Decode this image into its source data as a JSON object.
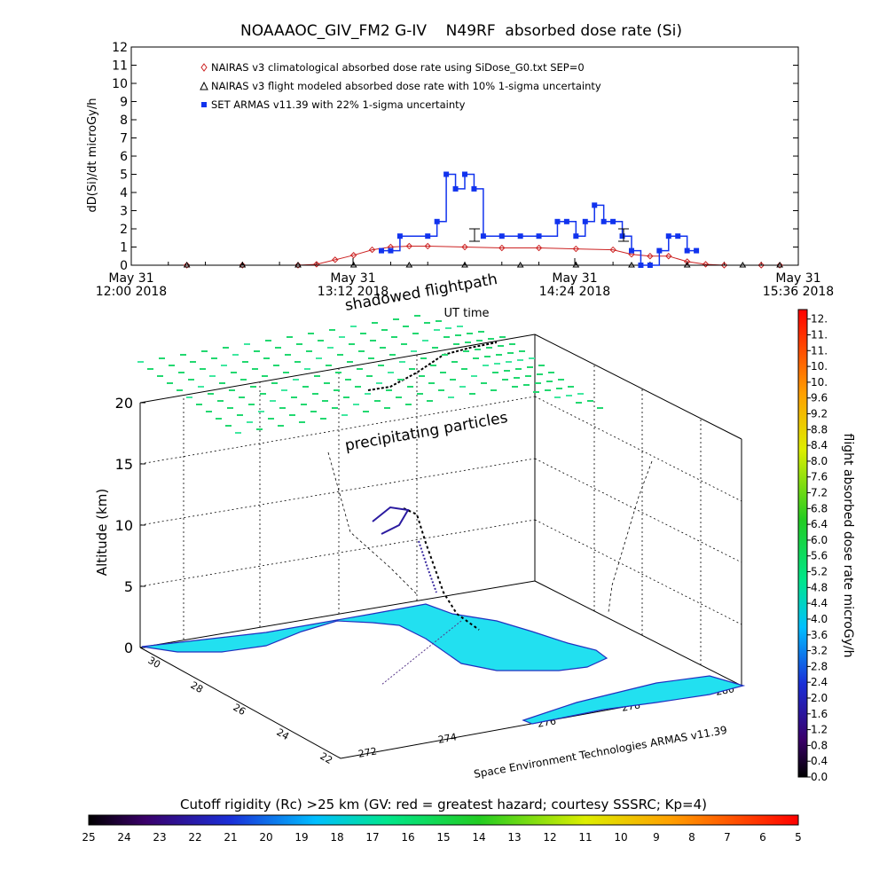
{
  "header": {
    "title": "NOAAAOC_GIV_FM2 G-IV    N49RF  absorbed dose rate (Si)"
  },
  "chart_data": [
    {
      "type": "line",
      "title": "NOAAAOC_GIV_FM2 G-IV    N49RF  absorbed dose rate (Si)",
      "xlabel": "UT time",
      "ylabel": "dD(Si)/dt microGy/h",
      "ylim": [
        0,
        12
      ],
      "y_ticks": [
        "0",
        "1",
        "2",
        "3",
        "4",
        "5",
        "6",
        "7",
        "8",
        "9",
        "10",
        "11",
        "12"
      ],
      "x_ticks": [
        {
          "date": "May 31",
          "time": "12:00 2018"
        },
        {
          "date": "May 31",
          "time": "13:12 2018"
        },
        {
          "date": "May 31",
          "time": "14:24 2018"
        },
        {
          "date": "May 31",
          "time": "15:36 2018"
        }
      ],
      "legend_position": "top-left",
      "grid": false,
      "series": [
        {
          "name": "NAIRAS v3 climatological absorbed dose rate using SiDose_G0.txt SEP=0",
          "color": "#cc2222",
          "marker": "diamond",
          "x": [
            "12:18",
            "12:36",
            "12:54",
            "13:00",
            "13:06",
            "13:12",
            "13:18",
            "13:24",
            "13:30",
            "13:36",
            "13:48",
            "14:00",
            "14:12",
            "14:24",
            "14:36",
            "14:42",
            "14:48",
            "14:54",
            "15:00",
            "15:06",
            "15:12",
            "15:24",
            "15:30"
          ],
          "values": [
            0,
            0,
            0,
            0.05,
            0.3,
            0.55,
            0.85,
            1.0,
            1.05,
            1.05,
            1.0,
            0.95,
            0.95,
            0.9,
            0.85,
            0.6,
            0.5,
            0.5,
            0.2,
            0.05,
            0,
            0,
            0
          ]
        },
        {
          "name": "NAIRAS v3 flight modeled absorbed dose rate with 10% 1-sigma uncertainty",
          "color": "#000000",
          "marker": "triangle",
          "x": [
            "12:18",
            "12:36",
            "12:54",
            "13:12",
            "13:30",
            "13:48",
            "14:06",
            "14:24",
            "14:42",
            "15:00",
            "15:18",
            "15:30"
          ],
          "values": [
            0,
            0,
            0,
            0,
            0,
            0,
            0,
            0,
            0,
            0,
            0,
            0
          ]
        },
        {
          "name": "SET ARMAS v11.39 with 22% 1-sigma uncertainty",
          "color": "#1133ee",
          "marker": "square",
          "x": [
            "13:21",
            "13:24",
            "13:27",
            "13:36",
            "13:39",
            "13:42",
            "13:45",
            "13:48",
            "13:51",
            "13:54",
            "14:00",
            "14:06",
            "14:12",
            "14:18",
            "14:21",
            "14:24",
            "14:27",
            "14:30",
            "14:33",
            "14:36",
            "14:39",
            "14:42",
            "14:45",
            "14:48",
            "14:51",
            "14:54",
            "14:57",
            "15:00",
            "15:03"
          ],
          "values": [
            0.8,
            0.8,
            1.6,
            1.6,
            2.4,
            5.0,
            4.2,
            5.0,
            4.2,
            1.6,
            1.6,
            1.6,
            1.6,
            2.4,
            2.4,
            1.6,
            2.4,
            3.3,
            2.4,
            2.4,
            1.6,
            0.8,
            0,
            0,
            0.8,
            1.6,
            1.6,
            0.8,
            0.8
          ]
        }
      ]
    },
    {
      "type": "scatter",
      "title": "shadowed flightpath",
      "xlabel": "",
      "ylabel": "Altitude (km)",
      "zlim": [
        0,
        20
      ],
      "z_ticks": [
        "0",
        "5",
        "10",
        "15",
        "20"
      ],
      "lat_ticks": [
        "30",
        "28",
        "26",
        "24",
        "22"
      ],
      "lon_ticks": [
        "272",
        "274",
        "276",
        "278",
        "280"
      ],
      "annotations": [
        "shadowed flightpath",
        "precipitating particles"
      ],
      "grid": true
    },
    {
      "type": "heatmap",
      "title": "flight absorbed dose rate microGy/h",
      "ylim": [
        0,
        12
      ],
      "ticks": [
        "0.0",
        "0.4",
        "0.8",
        "1.2",
        "1.6",
        "2.0",
        "2.4",
        "2.8",
        "3.2",
        "3.6",
        "4.0",
        "4.4",
        "4.8",
        "5.2",
        "5.6",
        "6.0",
        "6.4",
        "6.8",
        "7.2",
        "7.6",
        "8.0",
        "8.4",
        "8.8",
        "9.2",
        "9.6",
        "10.",
        "10.",
        "11.",
        "11.",
        "12."
      ]
    },
    {
      "type": "heatmap",
      "title": "Cutoff rigidity (Rc) >25 km (GV: red = greatest hazard; courtesy SSSRC; Kp=4)",
      "xlim": [
        25,
        5
      ],
      "ticks": [
        "25",
        "24",
        "23",
        "22",
        "21",
        "20",
        "19",
        "18",
        "17",
        "16",
        "15",
        "14",
        "13",
        "12",
        "11",
        "10",
        "9",
        "8",
        "7",
        "6",
        "5"
      ]
    }
  ],
  "annotations": {
    "shadowed": "shadowed flightpath",
    "precip": "precipitating particles",
    "credit": "Space Environment Technologies ARMAS v11.39"
  }
}
